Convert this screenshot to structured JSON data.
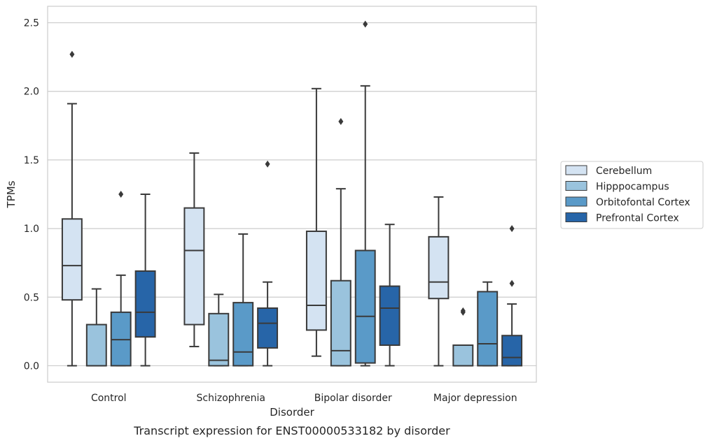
{
  "chart_data": {
    "type": "box",
    "caption": "Transcript expression for ENST00000533182 by disorder",
    "xlabel": "Disorder",
    "ylabel": "TPMs",
    "ylim": [
      -0.12,
      2.62
    ],
    "yticks": [
      0.0,
      0.5,
      1.0,
      1.5,
      2.0,
      2.5
    ],
    "ytick_labels": [
      "0.0",
      "0.5",
      "1.0",
      "1.5",
      "2.0",
      "2.5"
    ],
    "grid": "horizontal",
    "legend_position": "right",
    "categories": [
      "Control",
      "Schizophrenia",
      "Bipolar disorder",
      "Major depression"
    ],
    "series": [
      {
        "name": "Cerebellum",
        "color": "#d4e3f2",
        "boxes": [
          {
            "whislo": 0.0,
            "q1": 0.48,
            "med": 0.73,
            "q3": 1.07,
            "whishi": 1.91,
            "fliers": [
              2.27
            ]
          },
          {
            "whislo": 0.14,
            "q1": 0.3,
            "med": 0.84,
            "q3": 1.15,
            "whishi": 1.55,
            "fliers": []
          },
          {
            "whislo": 0.07,
            "q1": 0.26,
            "med": 0.44,
            "q3": 0.98,
            "whishi": 2.02,
            "fliers": []
          },
          {
            "whislo": 0.0,
            "q1": 0.49,
            "med": 0.61,
            "q3": 0.94,
            "whishi": 1.23,
            "fliers": []
          }
        ]
      },
      {
        "name": "Hipppocampus",
        "color": "#9ac3dd",
        "boxes": [
          {
            "whislo": 0.0,
            "q1": 0.0,
            "med": 0.0,
            "q3": 0.3,
            "whishi": 0.56,
            "fliers": []
          },
          {
            "whislo": 0.0,
            "q1": 0.0,
            "med": 0.04,
            "q3": 0.38,
            "whishi": 0.52,
            "fliers": []
          },
          {
            "whislo": 0.0,
            "q1": 0.0,
            "med": 0.11,
            "q3": 0.62,
            "whishi": 1.29,
            "fliers": [
              1.78
            ]
          },
          {
            "whislo": 0.0,
            "q1": 0.0,
            "med": 0.0,
            "q3": 0.15,
            "whishi": 0.15,
            "fliers": [
              0.39,
              0.4
            ]
          }
        ]
      },
      {
        "name": "Orbitofontal Cortex",
        "color": "#5a9ac8",
        "boxes": [
          {
            "whislo": 0.0,
            "q1": 0.0,
            "med": 0.19,
            "q3": 0.39,
            "whishi": 0.66,
            "fliers": [
              1.25
            ]
          },
          {
            "whislo": 0.0,
            "q1": 0.0,
            "med": 0.1,
            "q3": 0.46,
            "whishi": 0.96,
            "fliers": []
          },
          {
            "whislo": 0.0,
            "q1": 0.02,
            "med": 0.36,
            "q3": 0.84,
            "whishi": 2.04,
            "fliers": [
              2.49
            ]
          },
          {
            "whislo": 0.0,
            "q1": 0.0,
            "med": 0.16,
            "q3": 0.54,
            "whishi": 0.61,
            "fliers": []
          }
        ]
      },
      {
        "name": "Prefrontal Cortex",
        "color": "#2765a8",
        "boxes": [
          {
            "whislo": 0.0,
            "q1": 0.21,
            "med": 0.39,
            "q3": 0.69,
            "whishi": 1.25,
            "fliers": []
          },
          {
            "whislo": 0.0,
            "q1": 0.13,
            "med": 0.31,
            "q3": 0.42,
            "whishi": 0.61,
            "fliers": [
              1.47
            ]
          },
          {
            "whislo": 0.0,
            "q1": 0.15,
            "med": 0.42,
            "q3": 0.58,
            "whishi": 1.03,
            "fliers": []
          },
          {
            "whislo": 0.0,
            "q1": 0.0,
            "med": 0.06,
            "q3": 0.22,
            "whishi": 0.45,
            "fliers": [
              0.6,
              1.0
            ]
          }
        ]
      }
    ]
  }
}
